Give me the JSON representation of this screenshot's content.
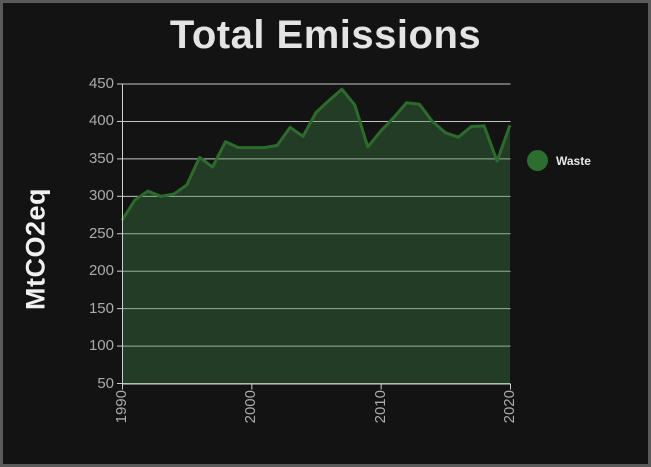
{
  "window": {
    "background": "#131313",
    "border_color": "#5a5a5a"
  },
  "chart_data": {
    "type": "area",
    "title": "Total Emissions",
    "ylabel": "MtCO2eq",
    "xlabel": "",
    "x": [
      1990,
      1991,
      1992,
      1993,
      1994,
      1995,
      1996,
      1997,
      1998,
      1999,
      2000,
      2001,
      2002,
      2003,
      2004,
      2005,
      2006,
      2007,
      2008,
      2009,
      2010,
      2011,
      2012,
      2013,
      2014,
      2015,
      2016,
      2017,
      2018,
      2019,
      2020
    ],
    "series": [
      {
        "name": "Waste",
        "values": [
          268,
          295,
          307,
          300,
          303,
          315,
          352,
          339,
          373,
          365,
          365,
          365,
          368,
          392,
          380,
          412,
          428,
          443,
          422,
          366,
          387,
          405,
          425,
          423,
          400,
          385,
          379,
          393,
          394,
          347,
          395
        ]
      }
    ],
    "xlim": [
      1990,
      2020
    ],
    "ylim": [
      50,
      450
    ],
    "yticks": [
      50,
      100,
      150,
      200,
      250,
      300,
      350,
      400,
      450
    ],
    "xticks": [
      1990,
      2000,
      2010,
      2020
    ],
    "grid": true,
    "legend": {
      "position": "right",
      "entries": [
        {
          "label": "Waste",
          "marker_color": "#2d6e30"
        }
      ]
    },
    "colors": {
      "line": "#2d6b2d",
      "area_fill": "rgba(63,137,74,0.35)",
      "grid": "rgba(255,255,255,0.75)",
      "axis": "#cfcfcf",
      "tick_label": "#ababab",
      "title": "#e4e4e4"
    }
  }
}
